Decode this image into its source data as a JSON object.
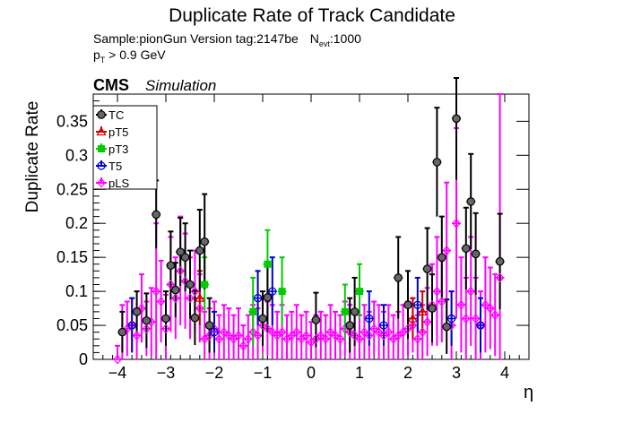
{
  "chart_data": {
    "type": "scatter",
    "title": "Duplicate Rate of Track Candidate",
    "info": {
      "sample_line": "Sample:pionGun   Version tag:2147be",
      "nevt_symbol": "N",
      "nevt_sub": "evt",
      "nevt_value": ":1000",
      "pt_symbol": "p",
      "pt_sub": "T",
      "pt_cut": " > 0.9 GeV"
    },
    "cms_label": "CMS",
    "cms_sub": "Simulation",
    "xlabel": "η",
    "ylabel": "Duplicate Rate",
    "xlim": [
      -4.5,
      4.5
    ],
    "ylim": [
      0,
      0.39
    ],
    "x_ticks": [
      -4,
      -3,
      -2,
      -1,
      0,
      1,
      2,
      3,
      4
    ],
    "x_tick_labels": [
      "−4",
      "−3",
      "−2",
      "−1",
      "0",
      "1",
      "2",
      "3",
      "4"
    ],
    "y_ticks": [
      0,
      0.05,
      0.1,
      0.15,
      0.2,
      0.25,
      0.3,
      0.35
    ],
    "y_tick_labels": [
      "0",
      "0.05",
      "0.1",
      "0.15",
      "0.2",
      "0.25",
      "0.3",
      "0.35"
    ],
    "legend_position": "top-left",
    "series": [
      {
        "name": "TC",
        "color": "#000000",
        "marker": "filled-circle",
        "x": [
          -3.9,
          -3.6,
          -3.4,
          -3.2,
          -3.0,
          -2.9,
          -2.8,
          -2.7,
          -2.6,
          -2.5,
          -2.4,
          -2.3,
          -2.2,
          -2.1,
          -1.0,
          -0.9,
          0.1,
          0.8,
          0.9,
          1.8,
          2.0,
          2.4,
          2.5,
          2.6,
          2.7,
          2.8,
          3.0,
          3.2,
          3.3,
          3.4,
          3.9
        ],
        "y": [
          0.04,
          0.07,
          0.057,
          0.213,
          0.06,
          0.138,
          0.102,
          0.158,
          0.15,
          0.11,
          0.061,
          0.16,
          0.173,
          0.05,
          0.06,
          0.091,
          0.058,
          0.05,
          0.07,
          0.12,
          0.08,
          0.133,
          0.075,
          0.29,
          0.15,
          0.048,
          0.354,
          0.163,
          0.232,
          0.155,
          0.144
        ],
        "err": [
          0.03,
          0.03,
          0.04,
          0.05,
          0.04,
          0.05,
          0.04,
          0.05,
          0.05,
          0.05,
          0.04,
          0.06,
          0.07,
          0.04,
          0.04,
          0.05,
          0.04,
          0.04,
          0.05,
          0.06,
          0.05,
          0.06,
          0.05,
          0.08,
          0.06,
          0.04,
          0.09,
          0.06,
          0.07,
          0.06,
          0.07
        ]
      },
      {
        "name": "pT5",
        "color": "#cc0000",
        "marker": "open-triangle",
        "x": [
          -2.3,
          2.1,
          2.3
        ],
        "y": [
          0.09,
          0.06,
          0.07
        ],
        "err": [
          0.04,
          0.03,
          0.03
        ]
      },
      {
        "name": "pT3",
        "color": "#00cc00",
        "marker": "filled-square",
        "x": [
          -2.2,
          -1.2,
          -0.9,
          -0.6,
          0.7,
          1.0
        ],
        "y": [
          0.11,
          0.07,
          0.14,
          0.1,
          0.07,
          0.1
        ],
        "err": [
          0.04,
          0.05,
          0.05,
          0.05,
          0.04,
          0.04
        ]
      },
      {
        "name": "T5",
        "color": "#0000cc",
        "marker": "open-circle",
        "x": [
          -3.7,
          -2.0,
          -1.1,
          -0.8,
          1.2,
          1.5,
          2.2,
          2.9,
          3.5
        ],
        "y": [
          0.05,
          0.04,
          0.09,
          0.1,
          0.06,
          0.05,
          0.08,
          0.06,
          0.05
        ],
        "err": [
          0.04,
          0.03,
          0.04,
          0.05,
          0.04,
          0.03,
          0.04,
          0.04,
          0.04
        ]
      },
      {
        "name": "pLS",
        "color": "#ff00ff",
        "marker": "open-diamond",
        "x": [
          -4.0,
          -3.9,
          -3.8,
          -3.7,
          -3.6,
          -3.5,
          -3.4,
          -3.3,
          -3.2,
          -3.1,
          -3.0,
          -2.9,
          -2.8,
          -2.7,
          -2.6,
          -2.5,
          -2.4,
          -2.3,
          -2.2,
          -2.1,
          -2.0,
          -1.9,
          -1.8,
          -1.7,
          -1.6,
          -1.5,
          -1.4,
          -1.3,
          -1.2,
          -1.1,
          -1.0,
          -0.9,
          -0.8,
          -0.7,
          -0.6,
          -0.5,
          -0.4,
          -0.3,
          -0.2,
          -0.1,
          0.0,
          0.1,
          0.2,
          0.3,
          0.4,
          0.5,
          0.6,
          0.7,
          0.8,
          0.9,
          1.0,
          1.1,
          1.2,
          1.3,
          1.4,
          1.5,
          1.6,
          1.7,
          1.8,
          1.9,
          2.0,
          2.1,
          2.2,
          2.3,
          2.4,
          2.5,
          2.6,
          2.7,
          2.8,
          2.9,
          3.0,
          3.1,
          3.2,
          3.3,
          3.4,
          3.5,
          3.6,
          3.7,
          3.8,
          3.9
        ],
        "y": [
          0.0,
          0.04,
          0.045,
          0.05,
          0.035,
          0.075,
          0.045,
          0.055,
          0.1,
          0.085,
          0.045,
          0.11,
          0.09,
          0.13,
          0.115,
          0.09,
          0.1,
          0.075,
          0.03,
          0.035,
          0.045,
          0.03,
          0.04,
          0.035,
          0.03,
          0.035,
          0.02,
          0.03,
          0.04,
          0.035,
          0.05,
          0.045,
          0.04,
          0.035,
          0.04,
          0.03,
          0.035,
          0.04,
          0.03,
          0.035,
          0.025,
          0.03,
          0.035,
          0.03,
          0.04,
          0.035,
          0.03,
          0.045,
          0.04,
          0.035,
          0.03,
          0.04,
          0.035,
          0.045,
          0.04,
          0.035,
          0.04,
          0.03,
          0.035,
          0.04,
          0.045,
          0.05,
          0.03,
          0.04,
          0.055,
          0.08,
          0.1,
          0.085,
          0.16,
          0.05,
          0.2,
          0.08,
          0.06,
          0.1,
          0.06,
          0.05,
          0.08,
          0.075,
          0.065,
          0.12
        ],
        "err": [
          0.02,
          0.04,
          0.04,
          0.04,
          0.04,
          0.05,
          0.04,
          0.05,
          0.1,
          0.06,
          0.05,
          0.07,
          0.06,
          0.08,
          0.07,
          0.06,
          0.06,
          0.05,
          0.04,
          0.04,
          0.04,
          0.035,
          0.04,
          0.04,
          0.035,
          0.04,
          0.03,
          0.035,
          0.04,
          0.04,
          0.04,
          0.04,
          0.04,
          0.035,
          0.04,
          0.035,
          0.035,
          0.04,
          0.035,
          0.035,
          0.03,
          0.035,
          0.035,
          0.035,
          0.04,
          0.035,
          0.035,
          0.04,
          0.04,
          0.035,
          0.035,
          0.04,
          0.035,
          0.04,
          0.04,
          0.035,
          0.04,
          0.035,
          0.035,
          0.04,
          0.04,
          0.04,
          0.035,
          0.04,
          0.05,
          0.06,
          0.08,
          0.06,
          0.1,
          0.05,
          0.14,
          0.07,
          0.06,
          0.08,
          0.06,
          0.05,
          0.07,
          0.06,
          0.06,
          0.27
        ]
      }
    ]
  }
}
